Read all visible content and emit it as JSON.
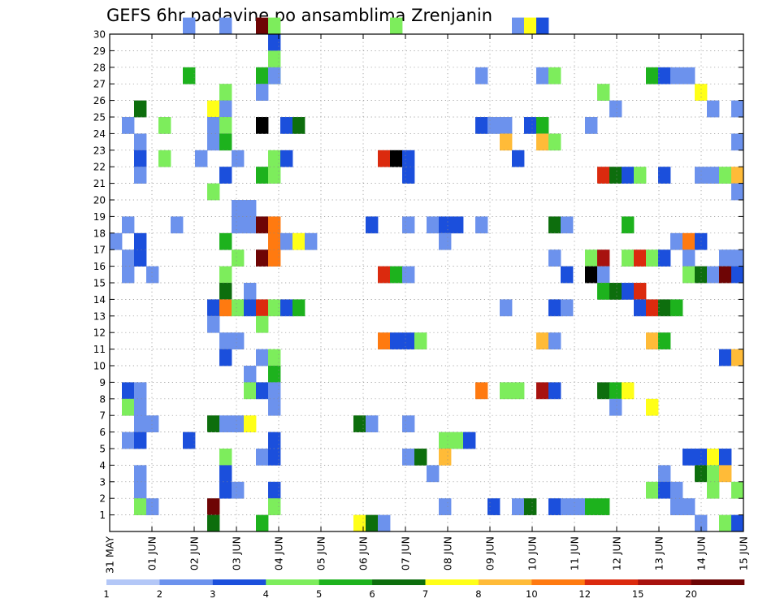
{
  "chart_data": {
    "type": "heatmap",
    "title": "GEFS 6hr padavine po ansamblima Zrenjanin",
    "xlabel": "",
    "ylabel": "",
    "x_tick_labels": [
      "31 MAY",
      "01 JUN",
      "02 JUN",
      "03 JUN",
      "04 JUN",
      "05 JUN",
      "06 JUN",
      "07 JUN",
      "08 JUN",
      "09 JUN",
      "10 JUN",
      "11 JUN",
      "12 JUN",
      "13 JUN",
      "14 JUN",
      "15 JUN"
    ],
    "y_tick_labels": [
      "1",
      "2",
      "3",
      "4",
      "5",
      "6",
      "7",
      "8",
      "9",
      "10",
      "11",
      "12",
      "13",
      "14",
      "15",
      "16",
      "17",
      "18",
      "19",
      "20",
      "21",
      "22",
      "23",
      "24",
      "25",
      "26",
      "27",
      "28",
      "29",
      "30"
    ],
    "x_range_days": [
      0,
      15
    ],
    "y_range_members": [
      0,
      30
    ],
    "grid": true,
    "colorbar": {
      "position": "bottom",
      "bounds": [
        1,
        2,
        3,
        4,
        5,
        6,
        7,
        8,
        10,
        12,
        15,
        20
      ],
      "bound_labels": [
        "1",
        "2",
        "3",
        "4",
        "5",
        "6",
        "7",
        "8",
        "10",
        "12",
        "15",
        "20"
      ],
      "colors": [
        "#b3c7f7",
        "#6c92ed",
        "#1b4fdc",
        "#7ded5c",
        "#1db21d",
        "#0d6e0d",
        "#ffff18",
        "#ffbb38",
        "#ff7a10",
        "#db2a0e",
        "#a8120e",
        "#6e0505"
      ]
    },
    "cells": [
      [
        6,
        30,
        1
      ],
      [
        9,
        30,
        1
      ],
      [
        12,
        30,
        11
      ],
      [
        13,
        30,
        3
      ],
      [
        23,
        30,
        3
      ],
      [
        33,
        30,
        1
      ],
      [
        34,
        30,
        6
      ],
      [
        35,
        30,
        2
      ],
      [
        13,
        29,
        2
      ],
      [
        13,
        28,
        3
      ],
      [
        13,
        27,
        3
      ],
      [
        6,
        27,
        4
      ],
      [
        12,
        27,
        4
      ],
      [
        13,
        27,
        1
      ],
      [
        30,
        27,
        1
      ],
      [
        35,
        27,
        1
      ],
      [
        36,
        27,
        3
      ],
      [
        44,
        27,
        4
      ],
      [
        45,
        27,
        2
      ],
      [
        46,
        27,
        1
      ],
      [
        47,
        27,
        1
      ],
      [
        9,
        26,
        3
      ],
      [
        12,
        26,
        1
      ],
      [
        40,
        26,
        3
      ],
      [
        48,
        26,
        6
      ],
      [
        2,
        25,
        5
      ],
      [
        8,
        25,
        6
      ],
      [
        9,
        25,
        1
      ],
      [
        41,
        25,
        1
      ],
      [
        49,
        25,
        1
      ],
      [
        51,
        25,
        1
      ],
      [
        1,
        24,
        1
      ],
      [
        4,
        24,
        3
      ],
      [
        8,
        24,
        1
      ],
      [
        9,
        24,
        3
      ],
      [
        12,
        24,
        12
      ],
      [
        14,
        24,
        2
      ],
      [
        15,
        24,
        5
      ],
      [
        30,
        24,
        2
      ],
      [
        31,
        24,
        1
      ],
      [
        32,
        24,
        1
      ],
      [
        34,
        24,
        2
      ],
      [
        35,
        24,
        4
      ],
      [
        39,
        24,
        1
      ],
      [
        2,
        23,
        1
      ],
      [
        8,
        23,
        1
      ],
      [
        9,
        23,
        4
      ],
      [
        32,
        23,
        7
      ],
      [
        35,
        23,
        7
      ],
      [
        36,
        23,
        3
      ],
      [
        51,
        23,
        1
      ],
      [
        2,
        22,
        2
      ],
      [
        4,
        22,
        3
      ],
      [
        7,
        22,
        1
      ],
      [
        10,
        22,
        1
      ],
      [
        13,
        22,
        3
      ],
      [
        14,
        22,
        2
      ],
      [
        22,
        22,
        9
      ],
      [
        23,
        22,
        12
      ],
      [
        24,
        22,
        2
      ],
      [
        33,
        22,
        2
      ],
      [
        2,
        21,
        1
      ],
      [
        9,
        21,
        2
      ],
      [
        12,
        21,
        4
      ],
      [
        13,
        21,
        3
      ],
      [
        24,
        21,
        2
      ],
      [
        40,
        21,
        9
      ],
      [
        41,
        21,
        5
      ],
      [
        42,
        21,
        2
      ],
      [
        43,
        21,
        3
      ],
      [
        45,
        21,
        2
      ],
      [
        48,
        21,
        1
      ],
      [
        49,
        21,
        1
      ],
      [
        50,
        21,
        3
      ],
      [
        51,
        21,
        7
      ],
      [
        8,
        20,
        3
      ],
      [
        51,
        20,
        1
      ],
      [
        10,
        19,
        1
      ],
      [
        11,
        19,
        1
      ],
      [
        1,
        18,
        1
      ],
      [
        5,
        18,
        1
      ],
      [
        10,
        18,
        1
      ],
      [
        11,
        18,
        1
      ],
      [
        12,
        18,
        11
      ],
      [
        13,
        18,
        8
      ],
      [
        21,
        18,
        2
      ],
      [
        24,
        18,
        1
      ],
      [
        26,
        18,
        1
      ],
      [
        27,
        18,
        2
      ],
      [
        28,
        18,
        2
      ],
      [
        30,
        18,
        1
      ],
      [
        36,
        18,
        5
      ],
      [
        37,
        18,
        1
      ],
      [
        42,
        18,
        4
      ],
      [
        0,
        17,
        1
      ],
      [
        2,
        17,
        2
      ],
      [
        9,
        17,
        4
      ],
      [
        13,
        17,
        8
      ],
      [
        14,
        17,
        1
      ],
      [
        15,
        17,
        6
      ],
      [
        16,
        17,
        1
      ],
      [
        27,
        17,
        1
      ],
      [
        46,
        17,
        1
      ],
      [
        47,
        17,
        8
      ],
      [
        48,
        17,
        2
      ],
      [
        1,
        16,
        1
      ],
      [
        2,
        16,
        2
      ],
      [
        10,
        16,
        3
      ],
      [
        12,
        16,
        11
      ],
      [
        13,
        16,
        8
      ],
      [
        36,
        16,
        1
      ],
      [
        39,
        16,
        3
      ],
      [
        40,
        16,
        10
      ],
      [
        42,
        16,
        3
      ],
      [
        43,
        16,
        9
      ],
      [
        44,
        16,
        3
      ],
      [
        45,
        16,
        2
      ],
      [
        47,
        16,
        1
      ],
      [
        50,
        16,
        1
      ],
      [
        51,
        16,
        1
      ],
      [
        1,
        15,
        1
      ],
      [
        3,
        15,
        1
      ],
      [
        9,
        15,
        3
      ],
      [
        22,
        15,
        9
      ],
      [
        23,
        15,
        4
      ],
      [
        24,
        15,
        1
      ],
      [
        37,
        15,
        2
      ],
      [
        39,
        15,
        12
      ],
      [
        40,
        15,
        1
      ],
      [
        47,
        15,
        3
      ],
      [
        48,
        15,
        5
      ],
      [
        49,
        15,
        1
      ],
      [
        50,
        15,
        11
      ],
      [
        51,
        15,
        2
      ],
      [
        9,
        14,
        5
      ],
      [
        11,
        14,
        1
      ],
      [
        40,
        14,
        4
      ],
      [
        41,
        14,
        5
      ],
      [
        42,
        14,
        2
      ],
      [
        43,
        14,
        9
      ],
      [
        8,
        13,
        2
      ],
      [
        9,
        13,
        8
      ],
      [
        10,
        13,
        3
      ],
      [
        11,
        13,
        2
      ],
      [
        12,
        13,
        9
      ],
      [
        13,
        13,
        3
      ],
      [
        14,
        13,
        2
      ],
      [
        15,
        13,
        4
      ],
      [
        32,
        13,
        1
      ],
      [
        36,
        13,
        2
      ],
      [
        37,
        13,
        1
      ],
      [
        43,
        13,
        2
      ],
      [
        44,
        13,
        9
      ],
      [
        45,
        13,
        5
      ],
      [
        46,
        13,
        4
      ],
      [
        8,
        12,
        1
      ],
      [
        12,
        12,
        3
      ],
      [
        9,
        11,
        1
      ],
      [
        10,
        11,
        1
      ],
      [
        22,
        11,
        8
      ],
      [
        23,
        11,
        2
      ],
      [
        24,
        11,
        2
      ],
      [
        25,
        11,
        3
      ],
      [
        35,
        11,
        7
      ],
      [
        36,
        11,
        1
      ],
      [
        44,
        11,
        7
      ],
      [
        45,
        11,
        4
      ],
      [
        9,
        10,
        2
      ],
      [
        12,
        10,
        1
      ],
      [
        13,
        10,
        3
      ],
      [
        50,
        10,
        2
      ],
      [
        51,
        10,
        7
      ],
      [
        11,
        9,
        1
      ],
      [
        13,
        9,
        4
      ],
      [
        1,
        8,
        2
      ],
      [
        2,
        8,
        1
      ],
      [
        11,
        8,
        3
      ],
      [
        12,
        8,
        2
      ],
      [
        13,
        8,
        1
      ],
      [
        30,
        8,
        8
      ],
      [
        32,
        8,
        3
      ],
      [
        33,
        8,
        3
      ],
      [
        35,
        8,
        10
      ],
      [
        36,
        8,
        2
      ],
      [
        40,
        8,
        5
      ],
      [
        41,
        8,
        4
      ],
      [
        42,
        8,
        6
      ],
      [
        1,
        7,
        3
      ],
      [
        2,
        7,
        1
      ],
      [
        13,
        7,
        1
      ],
      [
        41,
        7,
        1
      ],
      [
        44,
        7,
        6
      ],
      [
        2,
        6,
        1
      ],
      [
        3,
        6,
        1
      ],
      [
        8,
        6,
        5
      ],
      [
        9,
        6,
        1
      ],
      [
        10,
        6,
        1
      ],
      [
        11,
        6,
        6
      ],
      [
        20,
        6,
        5
      ],
      [
        21,
        6,
        1
      ],
      [
        24,
        6,
        1
      ],
      [
        1,
        5,
        1
      ],
      [
        2,
        5,
        2
      ],
      [
        6,
        5,
        2
      ],
      [
        13,
        5,
        2
      ],
      [
        27,
        5,
        3
      ],
      [
        28,
        5,
        3
      ],
      [
        29,
        5,
        2
      ],
      [
        9,
        4,
        3
      ],
      [
        12,
        4,
        1
      ],
      [
        13,
        4,
        2
      ],
      [
        24,
        4,
        1
      ],
      [
        25,
        4,
        5
      ],
      [
        27,
        4,
        7
      ],
      [
        47,
        4,
        2
      ],
      [
        48,
        4,
        2
      ],
      [
        49,
        4,
        6
      ],
      [
        50,
        4,
        2
      ],
      [
        2,
        3,
        1
      ],
      [
        9,
        3,
        2
      ],
      [
        26,
        3,
        1
      ],
      [
        45,
        3,
        1
      ],
      [
        48,
        3,
        5
      ],
      [
        49,
        3,
        3
      ],
      [
        50,
        3,
        7
      ],
      [
        2,
        2,
        1
      ],
      [
        9,
        2,
        2
      ],
      [
        10,
        2,
        1
      ],
      [
        13,
        2,
        2
      ],
      [
        44,
        2,
        3
      ],
      [
        45,
        2,
        2
      ],
      [
        46,
        2,
        1
      ],
      [
        49,
        2,
        3
      ],
      [
        51,
        2,
        3
      ],
      [
        2,
        1,
        3
      ],
      [
        3,
        1,
        1
      ],
      [
        8,
        1,
        11
      ],
      [
        13,
        1,
        3
      ],
      [
        27,
        1,
        1
      ],
      [
        31,
        1,
        2
      ],
      [
        33,
        1,
        1
      ],
      [
        34,
        1,
        5
      ],
      [
        36,
        1,
        2
      ],
      [
        37,
        1,
        1
      ],
      [
        38,
        1,
        1
      ],
      [
        39,
        1,
        4
      ],
      [
        40,
        1,
        4
      ],
      [
        46,
        1,
        1
      ],
      [
        47,
        1,
        1
      ],
      [
        8,
        0,
        5
      ],
      [
        12,
        0,
        4
      ],
      [
        20,
        0,
        6
      ],
      [
        21,
        0,
        5
      ],
      [
        22,
        0,
        1
      ],
      [
        48,
        0,
        1
      ],
      [
        50,
        0,
        3
      ],
      [
        51,
        0,
        2
      ]
    ]
  }
}
